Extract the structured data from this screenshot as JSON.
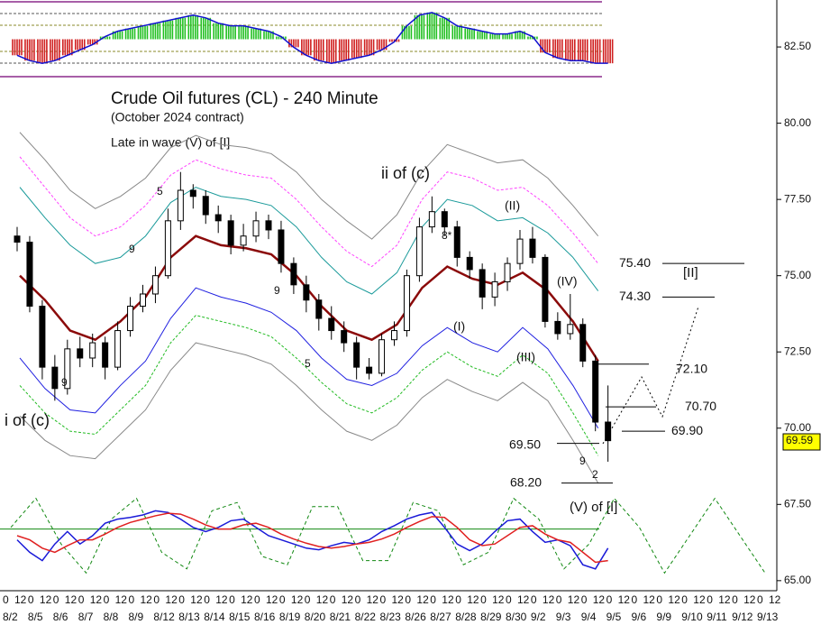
{
  "chart_data": {
    "type": "candlestick",
    "title": "Crude Oil futures (CL) - 240 Minute",
    "subtitle": "(October 2024 contract)",
    "note": "Late in wave (V) of [I]",
    "dates": [
      "8/2",
      "8/5",
      "8/6",
      "8/7",
      "8/8",
      "8/9",
      "8/12",
      "8/13",
      "8/14",
      "8/15",
      "8/16",
      "8/19",
      "8/20",
      "8/21",
      "8/22",
      "8/23",
      "8/26",
      "8/27",
      "8/28",
      "8/29",
      "8/30",
      "9/2",
      "9/3",
      "9/4",
      "9/5",
      "9/6",
      "9/9",
      "9/10",
      "9/11",
      "9/12",
      "9/13"
    ],
    "hour_labels": [
      "0",
      "12"
    ],
    "ylim": [
      64.67,
      84.04
    ],
    "yticks": [
      {
        "value": 65,
        "label": "65.00"
      },
      {
        "value": 67.5,
        "label": "67.50"
      },
      {
        "value": 70,
        "label": "70.00"
      },
      {
        "value": 72.5,
        "label": "72.50"
      },
      {
        "value": 75,
        "label": "75.00"
      },
      {
        "value": 77.5,
        "label": "77.50"
      },
      {
        "value": 80,
        "label": "80.00"
      },
      {
        "value": 82.5,
        "label": "82.50"
      }
    ],
    "candles": [
      [
        76.3,
        76.6,
        75.8,
        76.1
      ],
      [
        76.1,
        76.3,
        73.8,
        74.0
      ],
      [
        74.0,
        74.2,
        71.6,
        72.0
      ],
      [
        72.0,
        72.4,
        70.9,
        71.3
      ],
      [
        71.3,
        72.9,
        71.1,
        72.6
      ],
      [
        72.6,
        73.0,
        72.0,
        72.3
      ],
      [
        72.3,
        73.1,
        72.0,
        72.8
      ],
      [
        72.8,
        73.0,
        71.6,
        72.0
      ],
      [
        72.0,
        73.5,
        71.9,
        73.2
      ],
      [
        73.2,
        74.3,
        73.0,
        74.0
      ],
      [
        74.0,
        74.7,
        73.8,
        74.4
      ],
      [
        74.4,
        75.3,
        74.1,
        75.0
      ],
      [
        75.0,
        77.2,
        74.9,
        76.8
      ],
      [
        76.8,
        78.4,
        76.5,
        77.8
      ],
      [
        77.8,
        78.0,
        77.2,
        77.6
      ],
      [
        77.6,
        77.8,
        76.7,
        77.0
      ],
      [
        77.0,
        77.3,
        76.4,
        76.8
      ],
      [
        76.8,
        77.0,
        75.7,
        76.0
      ],
      [
        76.0,
        76.7,
        75.8,
        76.3
      ],
      [
        76.3,
        77.1,
        76.1,
        76.8
      ],
      [
        76.8,
        77.0,
        76.2,
        76.5
      ],
      [
        76.5,
        76.8,
        75.1,
        75.4
      ],
      [
        75.4,
        75.6,
        74.4,
        74.7
      ],
      [
        74.7,
        75.0,
        73.8,
        74.2
      ],
      [
        74.2,
        74.4,
        73.2,
        73.6
      ],
      [
        73.6,
        74.0,
        72.9,
        73.2
      ],
      [
        73.2,
        73.5,
        72.5,
        72.8
      ],
      [
        72.8,
        73.0,
        71.6,
        72.0
      ],
      [
        72.0,
        72.3,
        71.6,
        71.8
      ],
      [
        71.8,
        73.1,
        71.7,
        72.9
      ],
      [
        72.9,
        73.5,
        72.7,
        73.2
      ],
      [
        73.2,
        75.2,
        73.0,
        75.0
      ],
      [
        75.0,
        76.9,
        74.8,
        76.6
      ],
      [
        76.6,
        77.6,
        76.4,
        77.1
      ],
      [
        77.1,
        77.2,
        76.3,
        76.6
      ],
      [
        76.6,
        76.8,
        75.3,
        75.6
      ],
      [
        75.6,
        75.8,
        74.9,
        75.2
      ],
      [
        75.2,
        75.4,
        73.9,
        74.3
      ],
      [
        74.3,
        75.1,
        74.0,
        74.8
      ],
      [
        74.8,
        75.6,
        74.5,
        75.4
      ],
      [
        75.4,
        76.5,
        75.2,
        76.2
      ],
      [
        76.2,
        76.6,
        75.4,
        75.6
      ],
      [
        75.6,
        75.7,
        73.3,
        73.5
      ],
      [
        73.5,
        73.8,
        72.9,
        73.1
      ],
      [
        73.1,
        74.4,
        72.9,
        73.4
      ],
      [
        73.4,
        73.6,
        72.0,
        72.2
      ],
      [
        72.2,
        72.4,
        69.9,
        70.2
      ],
      [
        70.2,
        71.4,
        68.9,
        69.59
      ]
    ],
    "bands": [
      {
        "color": "#888888",
        "values": [
          79.7,
          78.8,
          77.8,
          77.2,
          77.6,
          78.2,
          79.2,
          79.6,
          79.3,
          79.2,
          79.0,
          78.4,
          77.5,
          76.8,
          76.2,
          77.0,
          78.4,
          79.3,
          79.0,
          78.7,
          78.8,
          78.2,
          77.3,
          76.3
        ]
      },
      {
        "color": "#ff44ff",
        "dash": true,
        "values": [
          78.9,
          77.9,
          76.9,
          76.3,
          76.6,
          77.3,
          78.3,
          78.8,
          78.5,
          78.3,
          78.2,
          77.5,
          76.6,
          75.8,
          75.3,
          76.0,
          77.5,
          78.4,
          78.2,
          77.8,
          77.9,
          77.3,
          76.4,
          75.4
        ]
      },
      {
        "color": "#1a9a9a",
        "values": [
          77.9,
          76.9,
          76.0,
          75.4,
          75.6,
          76.3,
          77.4,
          77.9,
          77.6,
          77.5,
          77.3,
          76.6,
          75.6,
          74.8,
          74.4,
          75.1,
          76.6,
          77.5,
          77.3,
          76.8,
          76.9,
          76.4,
          75.6,
          74.5
        ]
      },
      {
        "color": "#8b0a0a",
        "width": 2.5,
        "values": [
          75.0,
          74.2,
          73.2,
          72.9,
          73.5,
          74.3,
          75.6,
          76.3,
          76.0,
          75.9,
          75.7,
          75.0,
          74.0,
          73.2,
          72.9,
          73.4,
          74.6,
          75.3,
          74.9,
          74.7,
          75.1,
          74.5,
          73.5,
          72.2
        ]
      },
      {
        "color": "#1f1fe0",
        "values": [
          72.3,
          71.3,
          70.6,
          70.5,
          71.4,
          72.2,
          73.6,
          74.6,
          74.3,
          74.1,
          73.8,
          73.2,
          72.3,
          71.6,
          71.4,
          71.8,
          72.7,
          73.3,
          72.8,
          72.5,
          73.3,
          72.6,
          71.4,
          70.0
        ]
      },
      {
        "color": "#22bb22",
        "dash": true,
        "values": [
          71.4,
          70.5,
          69.9,
          69.8,
          70.6,
          71.4,
          72.8,
          73.7,
          73.5,
          73.3,
          73.0,
          72.3,
          71.5,
          70.8,
          70.5,
          71.0,
          71.9,
          72.5,
          72.0,
          71.7,
          72.4,
          71.8,
          70.5,
          69.1
        ]
      },
      {
        "color": "#888888",
        "values": [
          70.4,
          69.6,
          69.1,
          69.0,
          69.8,
          70.6,
          71.9,
          72.8,
          72.6,
          72.4,
          72.1,
          71.4,
          70.6,
          69.9,
          69.6,
          70.1,
          71.0,
          71.6,
          71.2,
          70.9,
          71.5,
          70.9,
          69.6,
          68.2
        ]
      }
    ],
    "levels": [
      {
        "value": 75.4,
        "label": "75.40"
      },
      {
        "value": 74.3,
        "label": "74.30"
      },
      {
        "value": 72.1,
        "label": "72.10"
      },
      {
        "value": 70.7,
        "label": "70.70"
      },
      {
        "value": 69.9,
        "label": "69.90"
      },
      {
        "value": 69.5,
        "label": "69.50"
      },
      {
        "value": 68.2,
        "label": "68.20"
      }
    ],
    "last_price": {
      "value": 69.59,
      "label": "69.59"
    },
    "annotations": [
      "i of (c)",
      "ii of (c)",
      "(I)",
      "(II)",
      "(III)",
      "(IV)",
      "(V) of [I]",
      "[II]",
      "9",
      "9",
      "9",
      "9",
      "5",
      "5",
      "8*",
      "2"
    ],
    "histogram": {
      "ylim": [
        -1.4,
        1.4
      ],
      "values": [
        -0.6,
        -0.8,
        -0.9,
        -0.8,
        -0.6,
        -0.4,
        -0.2,
        0.1,
        0.3,
        0.4,
        0.5,
        0.6,
        0.7,
        0.8,
        0.9,
        0.8,
        0.6,
        0.5,
        0.5,
        0.4,
        0.3,
        0.1,
        -0.3,
        -0.6,
        -0.8,
        -0.9,
        -0.8,
        -0.7,
        -0.6,
        -0.4,
        -0.1,
        0.5,
        0.9,
        1.0,
        0.8,
        0.5,
        0.4,
        0.3,
        0.2,
        0.2,
        0.3,
        0.1,
        -0.5,
        -0.7,
        -0.8,
        -0.8,
        -0.9,
        -0.9
      ]
    },
    "oscillator": {
      "ylim": [
        0,
        100
      ],
      "level": 58,
      "fast": [
        45,
        30,
        20,
        40,
        55,
        40,
        50,
        65,
        70,
        72,
        75,
        80,
        78,
        70,
        60,
        55,
        60,
        68,
        70,
        60,
        50,
        45,
        40,
        35,
        33,
        38,
        42,
        40,
        45,
        55,
        62,
        70,
        75,
        78,
        60,
        40,
        32,
        40,
        55,
        68,
        70,
        55,
        42,
        45,
        38,
        15,
        10,
        35
      ],
      "slow": [
        50,
        45,
        35,
        30,
        38,
        45,
        45,
        52,
        60,
        66,
        70,
        74,
        77,
        76,
        70,
        63,
        58,
        58,
        63,
        65,
        60,
        52,
        46,
        41,
        37,
        35,
        37,
        40,
        42,
        46,
        52,
        60,
        67,
        73,
        72,
        60,
        45,
        38,
        40,
        50,
        60,
        62,
        52,
        45,
        42,
        30,
        18,
        20
      ],
      "cycle": [
        60,
        95,
        40,
        5,
        70,
        95,
        30,
        10,
        80,
        90,
        25,
        15,
        85,
        85,
        20,
        20,
        90,
        80,
        15,
        30,
        95,
        70,
        10,
        40,
        95,
        60,
        5,
        50,
        95,
        50,
        5
      ]
    }
  }
}
